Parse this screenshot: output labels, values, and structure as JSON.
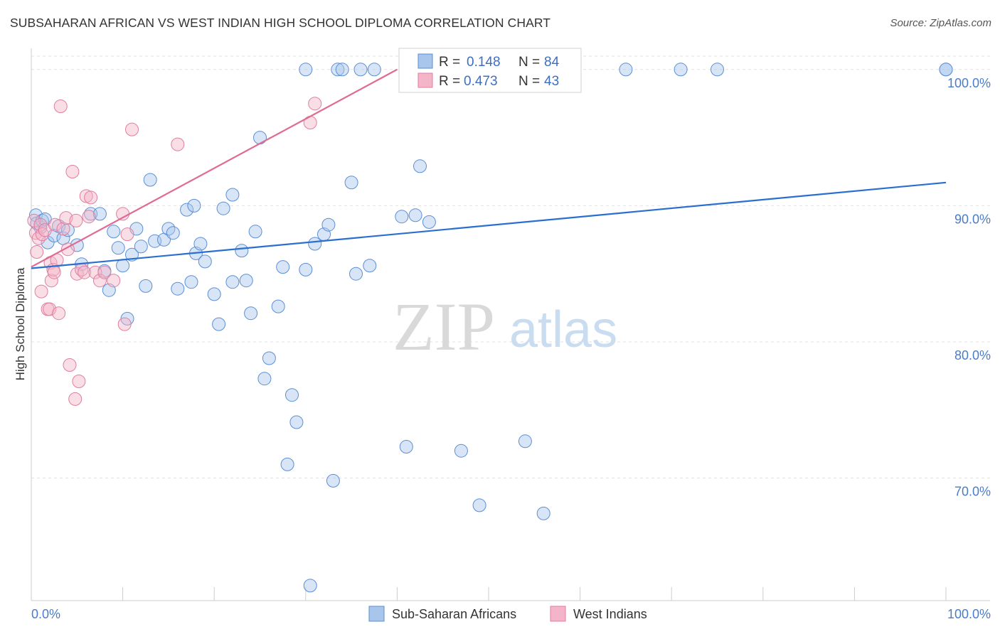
{
  "title": "SUBSAHARAN AFRICAN VS WEST INDIAN HIGH SCHOOL DIPLOMA CORRELATION CHART",
  "source": "Source: ZipAtlas.com",
  "watermark": {
    "zip": "ZIP",
    "atlas": "atlas"
  },
  "legend_top": [
    {
      "r_label": "R =",
      "r_value": "0.148",
      "n_label": "N =",
      "n_value": "84",
      "color": "#a8c6ec"
    },
    {
      "r_label": "R =",
      "r_value": "0.473",
      "n_label": "N =",
      "n_value": "43",
      "color": "#f5b5c8"
    }
  ],
  "chart_data": {
    "type": "scatter",
    "title": "SUBSAHARAN AFRICAN VS WEST INDIAN HIGH SCHOOL DIPLOMA CORRELATION CHART",
    "xlabel": "",
    "ylabel": "High School Diploma",
    "xlim": [
      0,
      100
    ],
    "ylim": [
      61,
      101.5
    ],
    "x_tick_labels": [
      "0.0%",
      "100.0%"
    ],
    "y_ticks": [
      70,
      80,
      90,
      100
    ],
    "y_tick_labels": [
      "70.0%",
      "80.0%",
      "90.0%",
      "100.0%"
    ],
    "grid": true,
    "legend_position": "bottom",
    "series": [
      {
        "name": "Sub-Saharan Africans",
        "color": "#a8c6ec",
        "stroke": "#5b8fd6",
        "trend_color": "#2a6fd0",
        "trend": {
          "x0": 0,
          "y0": 85.4,
          "x1": 100,
          "y1": 91.7
        },
        "points": [
          [
            0.5,
            89.3
          ],
          [
            0.6,
            88.7
          ],
          [
            1.0,
            88.4
          ],
          [
            1.2,
            88.9
          ],
          [
            1.5,
            89.0
          ],
          [
            1.8,
            87.3
          ],
          [
            2.5,
            87.8
          ],
          [
            3.0,
            88.5
          ],
          [
            3.5,
            87.6
          ],
          [
            4.0,
            88.2
          ],
          [
            5.0,
            87.1
          ],
          [
            5.5,
            85.7
          ],
          [
            6.5,
            89.4
          ],
          [
            7.5,
            89.4
          ],
          [
            8.0,
            85.2
          ],
          [
            8.5,
            83.8
          ],
          [
            9.0,
            88.1
          ],
          [
            9.5,
            86.9
          ],
          [
            10.0,
            85.6
          ],
          [
            10.5,
            81.7
          ],
          [
            11.0,
            86.4
          ],
          [
            11.5,
            88.3
          ],
          [
            12.0,
            87.0
          ],
          [
            12.5,
            84.1
          ],
          [
            13.0,
            91.9
          ],
          [
            13.5,
            87.4
          ],
          [
            14.5,
            87.5
          ],
          [
            15.0,
            88.3
          ],
          [
            15.5,
            88.0
          ],
          [
            16.0,
            83.9
          ],
          [
            17.0,
            89.7
          ],
          [
            17.5,
            84.4
          ],
          [
            17.8,
            90.0
          ],
          [
            18.0,
            86.5
          ],
          [
            18.5,
            87.2
          ],
          [
            19.0,
            85.9
          ],
          [
            20.0,
            83.5
          ],
          [
            20.5,
            81.3
          ],
          [
            21.0,
            89.8
          ],
          [
            22.0,
            84.4
          ],
          [
            22.0,
            90.8
          ],
          [
            23.0,
            86.7
          ],
          [
            23.5,
            84.5
          ],
          [
            24.0,
            82.1
          ],
          [
            24.5,
            88.1
          ],
          [
            25.0,
            95.0
          ],
          [
            25.5,
            77.3
          ],
          [
            26.0,
            78.8
          ],
          [
            27.0,
            82.6
          ],
          [
            27.5,
            85.5
          ],
          [
            28.0,
            71.0
          ],
          [
            28.5,
            76.1
          ],
          [
            29.0,
            74.1
          ],
          [
            30.0,
            100.0
          ],
          [
            30.0,
            85.3
          ],
          [
            30.5,
            62.1
          ],
          [
            31.0,
            87.2
          ],
          [
            32.0,
            87.9
          ],
          [
            32.5,
            88.6
          ],
          [
            33.0,
            69.8
          ],
          [
            33.5,
            100.0
          ],
          [
            34.0,
            100.0
          ],
          [
            35.0,
            91.7
          ],
          [
            35.5,
            85.0
          ],
          [
            36.0,
            100.0
          ],
          [
            37.0,
            85.6
          ],
          [
            37.5,
            100.0
          ],
          [
            40.5,
            89.2
          ],
          [
            41.0,
            72.3
          ],
          [
            42.0,
            89.3
          ],
          [
            42.5,
            92.9
          ],
          [
            43.5,
            88.8
          ],
          [
            46.0,
            100.0
          ],
          [
            47.0,
            72.0
          ],
          [
            49.0,
            68.0
          ],
          [
            52.0,
            100.0
          ],
          [
            54.0,
            72.7
          ],
          [
            55.0,
            99.2
          ],
          [
            56.0,
            67.4
          ],
          [
            65.0,
            100.0
          ],
          [
            71.0,
            100.0
          ],
          [
            75.0,
            100.0
          ],
          [
            100.0,
            100.0
          ],
          [
            100.0,
            100.0
          ]
        ]
      },
      {
        "name": "West Indians",
        "color": "#f5b5c8",
        "stroke": "#e07ea0",
        "trend_color": "#e06a93",
        "trend": {
          "x0": 0,
          "y0": 85.5,
          "x1": 40,
          "y1": 100.0
        },
        "points": [
          [
            0.3,
            88.9
          ],
          [
            0.5,
            88.0
          ],
          [
            0.6,
            86.6
          ],
          [
            0.8,
            87.6
          ],
          [
            1.0,
            88.6
          ],
          [
            1.1,
            83.7
          ],
          [
            1.2,
            87.9
          ],
          [
            1.5,
            88.2
          ],
          [
            1.8,
            82.4
          ],
          [
            2.0,
            82.4
          ],
          [
            2.1,
            85.8
          ],
          [
            2.2,
            84.5
          ],
          [
            2.4,
            85.3
          ],
          [
            2.5,
            85.1
          ],
          [
            2.6,
            88.6
          ],
          [
            2.8,
            86.0
          ],
          [
            3.0,
            82.1
          ],
          [
            3.2,
            97.3
          ],
          [
            3.5,
            88.3
          ],
          [
            3.8,
            89.1
          ],
          [
            4.0,
            86.8
          ],
          [
            4.2,
            78.3
          ],
          [
            4.5,
            92.5
          ],
          [
            4.8,
            75.8
          ],
          [
            4.9,
            88.9
          ],
          [
            5.0,
            85.0
          ],
          [
            5.2,
            77.1
          ],
          [
            5.5,
            85.3
          ],
          [
            5.8,
            85.1
          ],
          [
            6.0,
            90.7
          ],
          [
            6.3,
            89.2
          ],
          [
            6.5,
            90.6
          ],
          [
            7.0,
            85.1
          ],
          [
            7.5,
            84.5
          ],
          [
            8.0,
            85.1
          ],
          [
            9.0,
            84.5
          ],
          [
            10.0,
            89.4
          ],
          [
            10.2,
            81.3
          ],
          [
            10.5,
            87.9
          ],
          [
            11.0,
            95.6
          ],
          [
            16.0,
            94.5
          ],
          [
            30.5,
            96.1
          ],
          [
            31.0,
            97.5
          ]
        ]
      }
    ]
  }
}
